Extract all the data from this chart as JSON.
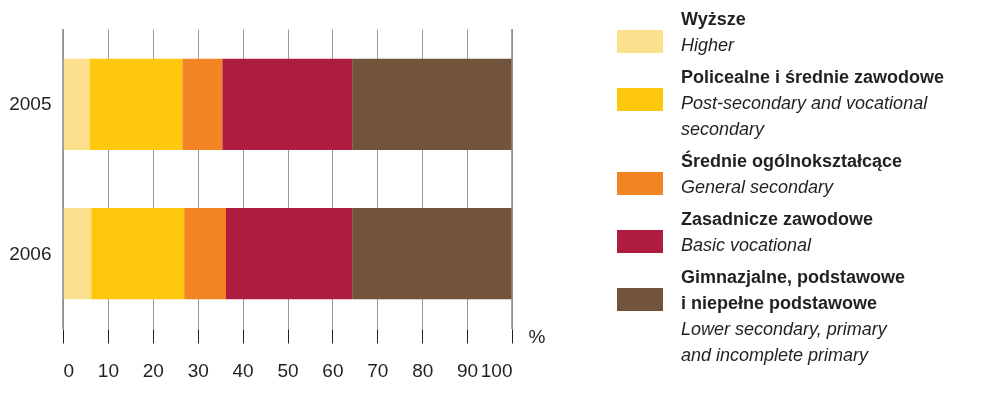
{
  "chart_data": {
    "type": "bar",
    "orientation": "horizontal",
    "stacked": true,
    "categories": [
      "2005",
      "2006"
    ],
    "xlabel": "%",
    "xlim": [
      0,
      100
    ],
    "xticks": [
      0,
      10,
      20,
      30,
      40,
      50,
      60,
      70,
      80,
      90,
      100
    ],
    "grid": "x",
    "legend": "right",
    "series": [
      {
        "name": "Wyższe\n\nHigher",
        "color": "#fde08e",
        "values": [
          5.9,
          6.3
        ]
      },
      {
        "name": "Policealne i średnie zawodowe\n\nPost-secondary and vocational\nsecondary",
        "color": "#fec90d",
        "values": [
          20.7,
          20.7
        ]
      },
      {
        "name": "Średnie ogólnokształcące\n\nGeneral secondary",
        "color": "#f28423",
        "values": [
          8.9,
          9.3
        ]
      },
      {
        "name": "Zasadnicze zawodowe\n\nBasic vocational",
        "color": "#ae1c40",
        "values": [
          28.9,
          28.1
        ]
      },
      {
        "name": "Gimnazjalne, podstawowe\ni niepełne podstawowe\n\nLower secondary, primary\nand incomplete primary",
        "color": "#72533b",
        "values": [
          35.6,
          35.6
        ]
      }
    ]
  }
}
